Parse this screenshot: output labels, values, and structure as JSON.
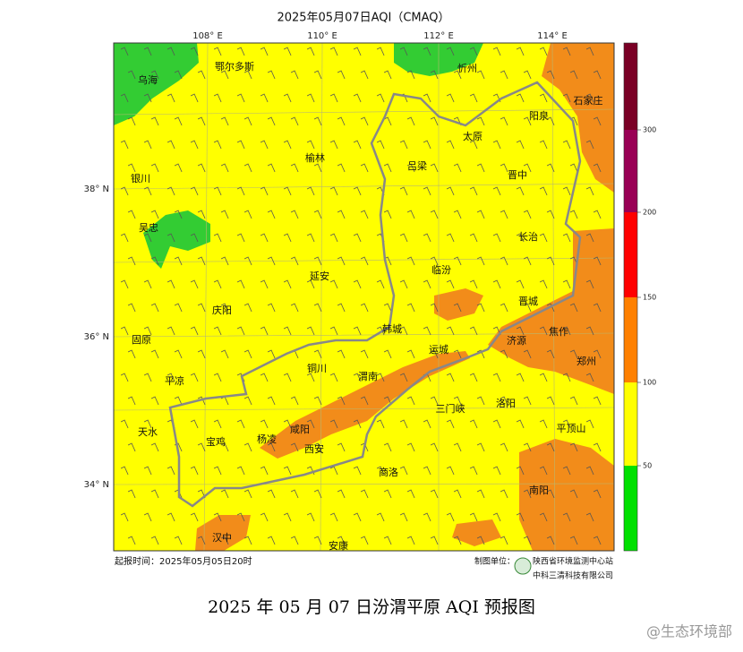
{
  "header": {
    "title": "2025年05月07日AQI（CMAQ）"
  },
  "axes": {
    "lon_labels": [
      "108° E",
      "110° E",
      "112° E",
      "114° E"
    ],
    "lat_labels": [
      "38° N",
      "36° N",
      "34° N"
    ]
  },
  "cities": [
    "乌海",
    "鄂尔多斯",
    "忻州",
    "石家庄",
    "阳泉",
    "太原",
    "榆林",
    "吕梁",
    "晋中",
    "银川",
    "吴忠",
    "长治",
    "延安",
    "临汾",
    "晋城",
    "庆阳",
    "韩城",
    "焦作",
    "济源",
    "固原",
    "运城",
    "铜川",
    "郑州",
    "渭南",
    "平凉",
    "三门峡",
    "洛阳",
    "咸阳",
    "天水",
    "平顶山",
    "宝鸡",
    "杨凌",
    "西安",
    "商洛",
    "南阳",
    "汉中",
    "安康"
  ],
  "colorbar": {
    "ticks": [
      50,
      100,
      150,
      200,
      300
    ]
  },
  "footer": {
    "issue_time": "起报时间：2025年05月05日20时",
    "producer_label": "制图单位：",
    "producer_1": "陕西省环境监测中心站",
    "producer_2": "中科三清科技有限公司"
  },
  "caption": "2025 年 05 月 07 日汾渭平原 AQI 预报图",
  "watermark": "@生态环境部"
}
